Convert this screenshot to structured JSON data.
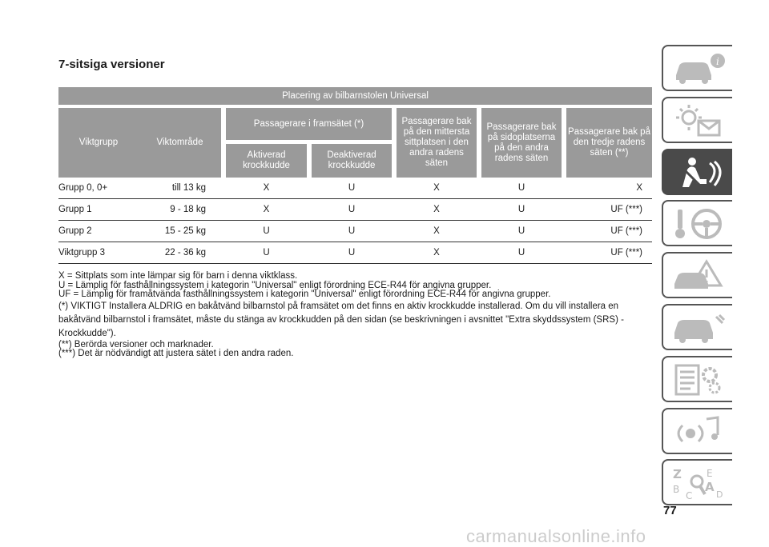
{
  "section_title": "7-sitsiga versioner",
  "table": {
    "header_main": "Placering av bilbarnstolen Universal",
    "col_weight_group": "Viktgrupp",
    "col_weight_range": "Viktområde",
    "col_front_group": "Passagerare i framsätet (*)",
    "col_front_on": "Aktiverad krockkudde",
    "col_front_off": "Deaktiverad krockkudde",
    "col_rear_middle": "Passagerare bak på den mittersta sittplatsen i den andra radens säten",
    "col_rear_side": "Passagerare bak på sidoplatserna på den andra radens säten",
    "col_third_row": "Passagerare bak på den tredje radens säten (**)",
    "rows": [
      {
        "group": "Grupp 0, 0+",
        "range": "till 13 kg",
        "on": "X",
        "off": "U",
        "mid": "X",
        "side": "U",
        "third": "X"
      },
      {
        "group": "Grupp 1",
        "range": "9 - 18 kg",
        "on": "X",
        "off": "U",
        "mid": "X",
        "side": "U",
        "third": "UF (***)"
      },
      {
        "group": "Grupp 2",
        "range": "15 - 25 kg",
        "on": "U",
        "off": "U",
        "mid": "X",
        "side": "U",
        "third": "UF (***)"
      },
      {
        "group": "Viktgrupp 3",
        "range": "22 - 36 kg",
        "on": "U",
        "off": "U",
        "mid": "X",
        "side": "U",
        "third": "UF (***)"
      }
    ]
  },
  "notes": {
    "n1": "X = Sittplats som inte lämpar sig för barn i denna viktklass.",
    "n2": "U = Lämplig för fasthållningssystem i kategorin \"Universal\" enligt förordning ECE-R44 för angivna grupper.",
    "n3": "UF = Lämplig för framåtvända fasthållningssystem i kategorin \"Universal\" enligt förordning ECE-R44 för angivna grupper.",
    "n4": "(*) VIKTIGT Installera ALDRIG en bakåtvänd bilbarnstol på framsätet om det finns en aktiv krockkudde installerad. Om du vill installera en bakåtvänd bilbarnstol i framsätet, måste du stänga av krockkudden på den sidan (se beskrivningen i avsnittet \"Extra skyddssystem (SRS) - Krockkudde\").",
    "n5": "(**) Berörda versioner och marknader.",
    "n6": "(***) Det är nödvändigt att justera sätet i den andra raden."
  },
  "tabs": [
    {
      "icon": "car-info-icon",
      "active": false
    },
    {
      "icon": "warning-lights-icon",
      "active": false
    },
    {
      "icon": "seat-safety-icon",
      "active": true
    },
    {
      "icon": "key-steering-wheel-icon",
      "active": false
    },
    {
      "icon": "car-emergency-icon",
      "active": false
    },
    {
      "icon": "car-maintenance-icon",
      "active": false
    },
    {
      "icon": "technical-data-icon",
      "active": false
    },
    {
      "icon": "multimedia-icon",
      "active": false
    },
    {
      "icon": "alphabetical-index-icon",
      "active": false
    }
  ],
  "page_number": "77",
  "watermark": "carmanualsonline.info"
}
